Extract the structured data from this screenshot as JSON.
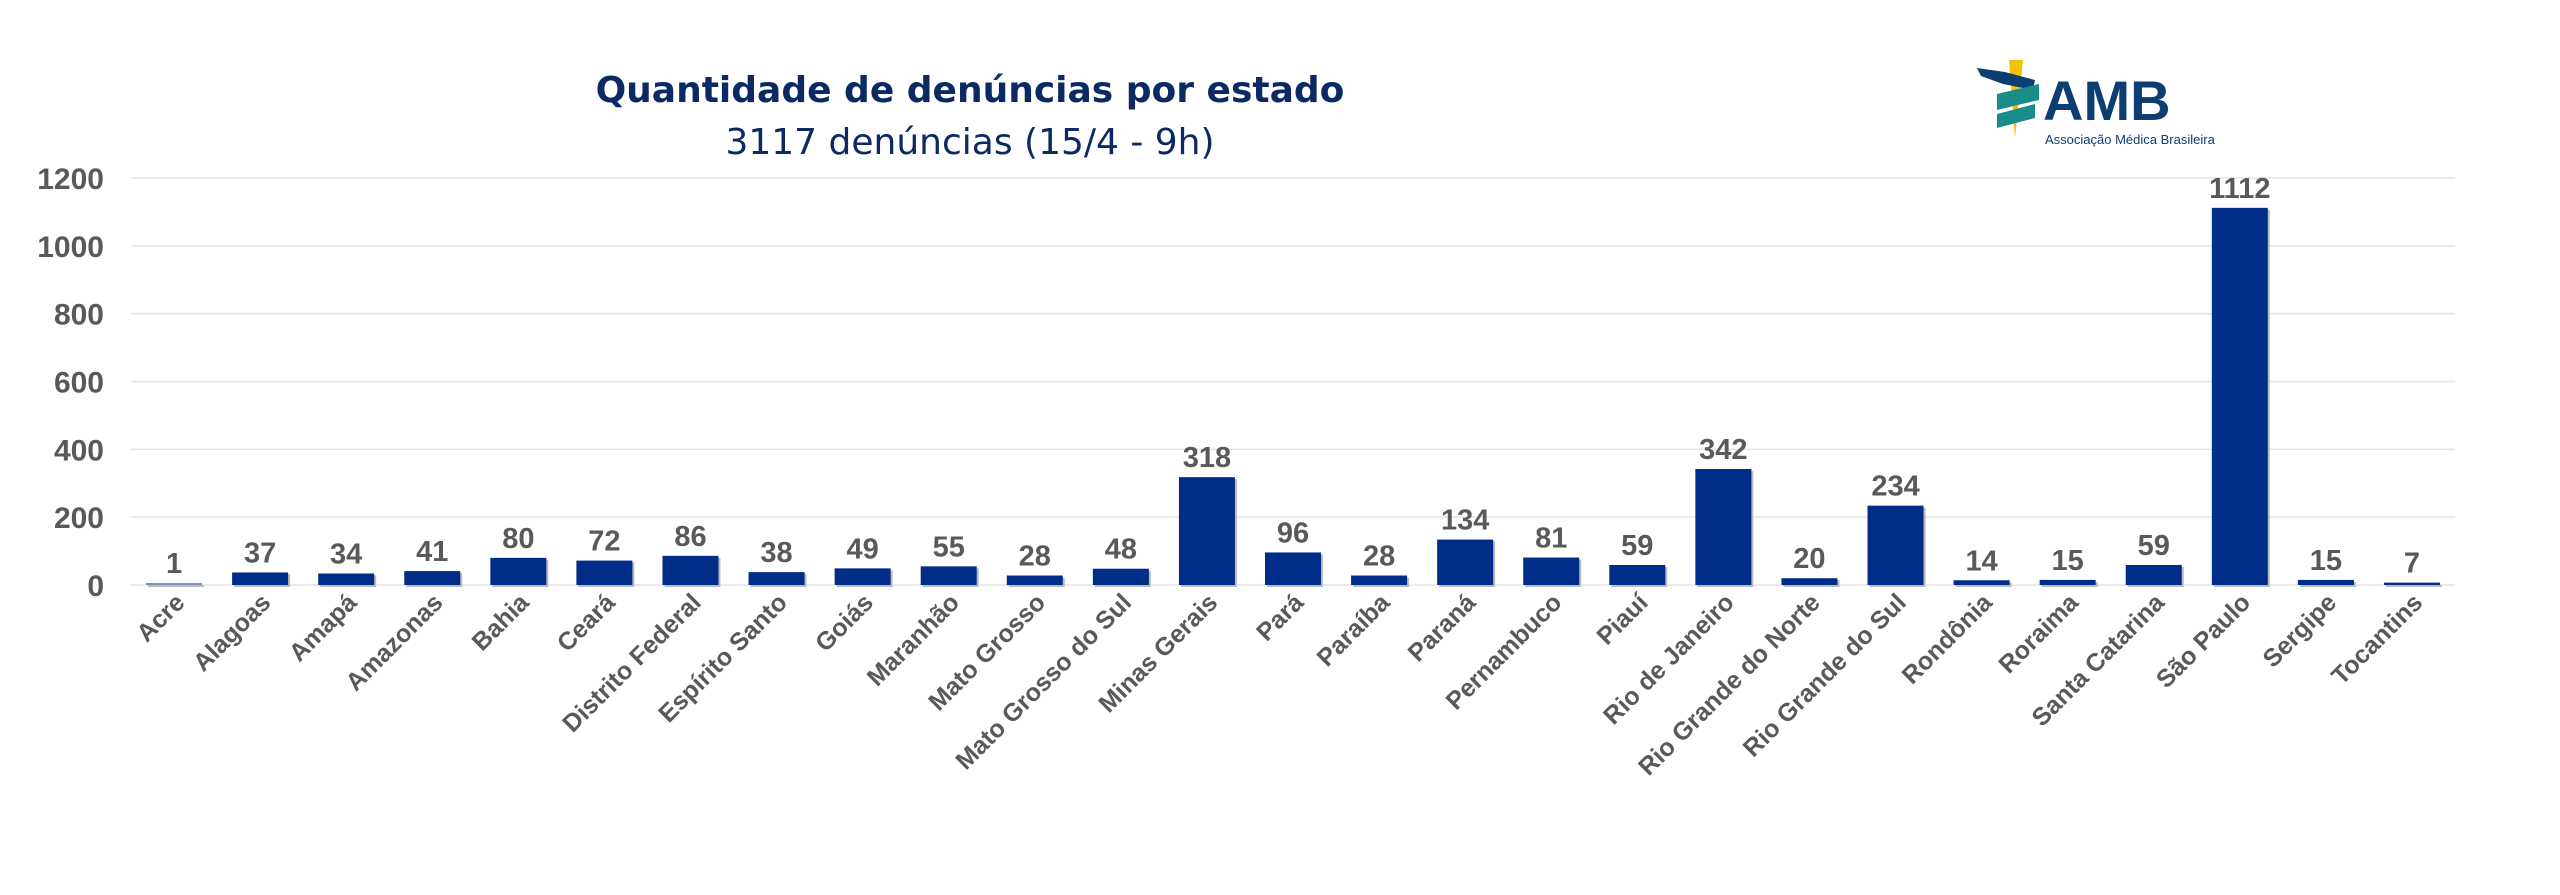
{
  "chart_data": {
    "type": "bar",
    "title": "Quantidade de denúncias por estado",
    "subtitle": "3117 denúncias (15/4 - 9h)",
    "xlabel": "",
    "ylabel": "",
    "ylim": [
      0,
      1200
    ],
    "yticks": [
      0,
      200,
      400,
      600,
      800,
      1000,
      1200
    ],
    "grid": true,
    "categories": [
      "Acre",
      "Alagoas",
      "Amapá",
      "Amazonas",
      "Bahia",
      "Ceará",
      "Distrito Federal",
      "Espírito Santo",
      "Goiás",
      "Maranhão",
      "Mato Grosso",
      "Mato Grosso do Sul",
      "Minas Gerais",
      "Pará",
      "Paraíba",
      "Paraná",
      "Pernambuco",
      "Piauí",
      "Rio de Janeiro",
      "Rio Grande do Norte",
      "Rio Grande do Sul",
      "Rondônia",
      "Roraima",
      "Santa Catarina",
      "São Paulo",
      "Sergipe",
      "Tocantins"
    ],
    "values": [
      1,
      37,
      34,
      41,
      80,
      72,
      86,
      38,
      49,
      55,
      28,
      48,
      318,
      96,
      28,
      134,
      81,
      59,
      342,
      20,
      234,
      14,
      15,
      59,
      1112,
      15,
      7
    ],
    "bar_color": "#002d87",
    "data_labels": true
  },
  "logo": {
    "text": "AMB",
    "tagline": "Associação Médica Brasileira",
    "colors": {
      "navy": "#0d3e72",
      "teal": "#1a8c8a",
      "yellow": "#f2c200"
    }
  }
}
